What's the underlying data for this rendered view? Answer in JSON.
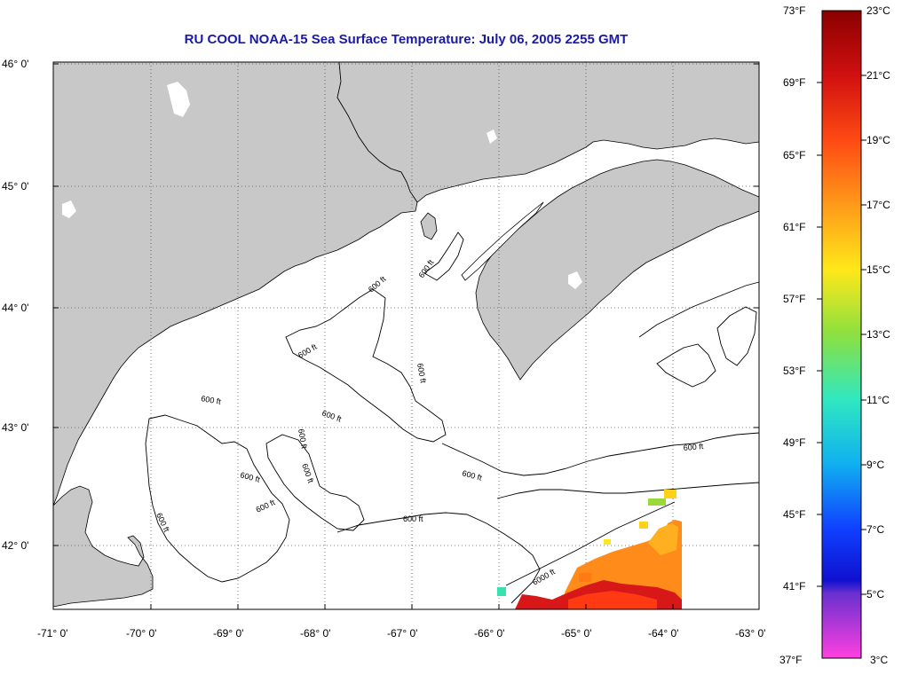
{
  "title": "RU COOL  NOAA-15  Sea Surface Temperature:  July 06, 2005 2255 GMT",
  "lat_labels": [
    "46° 0'",
    "45° 0'",
    "44° 0'",
    "43° 0'",
    "42° 0'"
  ],
  "lon_labels": [
    "-71° 0'",
    "-70° 0'",
    "-69° 0'",
    "-68° 0'",
    "-67° 0'",
    "-66° 0'",
    "-65° 0'",
    "-64° 0'",
    "-63° 0'"
  ],
  "colorbar": {
    "f_labels": [
      "73°F",
      "69°F",
      "65°F",
      "61°F",
      "57°F",
      "53°F",
      "49°F",
      "45°F",
      "41°F",
      "37°F"
    ],
    "c_labels": [
      "23°C",
      "21°C",
      "19°C",
      "17°C",
      "15°C",
      "13°C",
      "11°C",
      "9°C",
      "7°C",
      "5°C",
      "3°C"
    ]
  },
  "contour_labels": [
    {
      "text": "600 ft",
      "name": "contour-label-600-a"
    },
    {
      "text": "600 ft",
      "name": "contour-label-600-b"
    },
    {
      "text": "600 ft",
      "name": "contour-label-600-c"
    },
    {
      "text": "600 ft",
      "name": "contour-label-600-d"
    },
    {
      "text": "600 ft",
      "name": "contour-label-600-e"
    },
    {
      "text": "600 ft",
      "name": "contour-label-600-f"
    },
    {
      "text": "600 ft",
      "name": "contour-label-600-g"
    },
    {
      "text": "600 ft",
      "name": "contour-label-600-h"
    },
    {
      "text": "600 ft",
      "name": "contour-label-600-i"
    },
    {
      "text": "600 ft",
      "name": "contour-label-600-j"
    },
    {
      "text": "600 ft",
      "name": "contour-label-600-k"
    },
    {
      "text": "600 ft",
      "name": "contour-label-600-l"
    },
    {
      "text": "600 ft",
      "name": "contour-label-600-m"
    },
    {
      "text": "600 ft",
      "name": "contour-label-600-n"
    },
    {
      "text": "6000 ft",
      "name": "contour-label-6000"
    }
  ],
  "colors": {
    "land": "#c8c8c8",
    "title": "#1a1aa8",
    "sst_warm": "#d81818",
    "sst_orange": "#ff8c1a"
  }
}
